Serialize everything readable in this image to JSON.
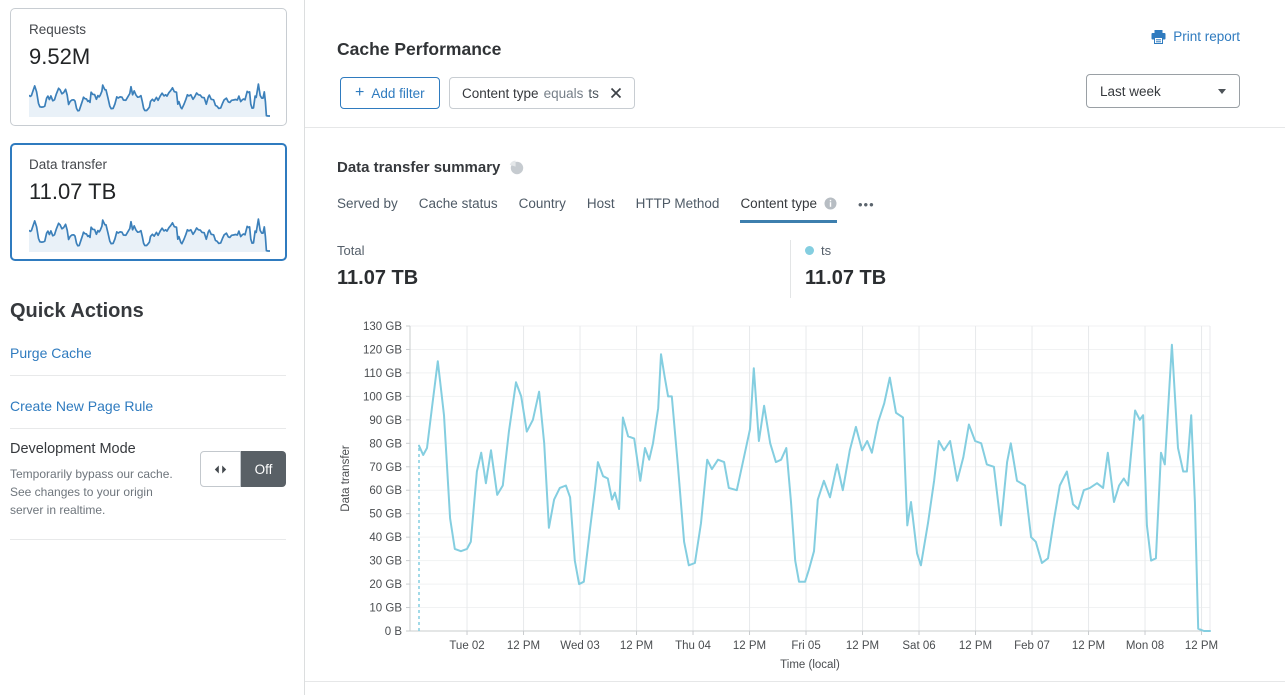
{
  "sidebar": {
    "cards": [
      {
        "label": "Requests",
        "value": "9.52M",
        "selected": false
      },
      {
        "label": "Data transfer",
        "value": "11.07 TB",
        "selected": true
      }
    ],
    "quick_actions": {
      "title": "Quick Actions",
      "links": [
        {
          "label": "Purge Cache"
        },
        {
          "label": "Create New Page Rule"
        }
      ],
      "dev_mode": {
        "title": "Development Mode",
        "description": "Temporarily bypass our cache. See changes to your origin server in realtime.",
        "toggle_state": "Off"
      }
    }
  },
  "header": {
    "title": "Cache Performance",
    "print_label": "Print report",
    "add_filter": {
      "plus": "+",
      "label": "Add filter"
    },
    "filter_chip": {
      "field": "Content type",
      "operator": "equals",
      "value": "ts"
    },
    "time_range": "Last week"
  },
  "summary": {
    "title": "Data transfer summary",
    "tabs": [
      {
        "label": "Served by",
        "active": false,
        "info": false
      },
      {
        "label": "Cache status",
        "active": false,
        "info": false
      },
      {
        "label": "Country",
        "active": false,
        "info": false
      },
      {
        "label": "Host",
        "active": false,
        "info": false
      },
      {
        "label": "HTTP Method",
        "active": false,
        "info": false
      },
      {
        "label": "Content type",
        "active": true,
        "info": true
      }
    ],
    "more_label": "•••",
    "total_label": "Total",
    "total_value": "11.07 TB",
    "legend": {
      "name": "ts",
      "value": "11.07 TB",
      "color": "#84cee0"
    }
  },
  "chart_data": {
    "type": "line",
    "title": "Data transfer summary",
    "xlabel": "Time (local)",
    "ylabel": "Data transfer",
    "unit": "GB",
    "ylim": [
      0,
      130
    ],
    "y_ticks": [
      {
        "value": 0,
        "label": "0 B"
      },
      {
        "value": 10,
        "label": "10 GB"
      },
      {
        "value": 20,
        "label": "20 GB"
      },
      {
        "value": 30,
        "label": "30 GB"
      },
      {
        "value": 40,
        "label": "40 GB"
      },
      {
        "value": 50,
        "label": "50 GB"
      },
      {
        "value": 60,
        "label": "60 GB"
      },
      {
        "value": 70,
        "label": "70 GB"
      },
      {
        "value": 80,
        "label": "80 GB"
      },
      {
        "value": 90,
        "label": "90 GB"
      },
      {
        "value": 100,
        "label": "100 GB"
      },
      {
        "value": 110,
        "label": "110 GB"
      },
      {
        "value": 120,
        "label": "120 GB"
      },
      {
        "value": 130,
        "label": "130 GB"
      }
    ],
    "x_range_hours": [
      0,
      168
    ],
    "x_ticks": [
      {
        "hour": 10.2,
        "label": "Tue 02"
      },
      {
        "hour": 22.2,
        "label": "12 PM"
      },
      {
        "hour": 34.2,
        "label": "Wed 03"
      },
      {
        "hour": 46.2,
        "label": "12 PM"
      },
      {
        "hour": 58.2,
        "label": "Thu 04"
      },
      {
        "hour": 70.2,
        "label": "12 PM"
      },
      {
        "hour": 82.2,
        "label": "Fri 05"
      },
      {
        "hour": 94.2,
        "label": "12 PM"
      },
      {
        "hour": 106.2,
        "label": "Sat 06"
      },
      {
        "hour": 118.2,
        "label": "12 PM"
      },
      {
        "hour": 130.2,
        "label": "Feb 07"
      },
      {
        "hour": 142.2,
        "label": "12 PM"
      },
      {
        "hour": 154.2,
        "label": "Mon 08"
      },
      {
        "hour": 166.2,
        "label": "12 PM"
      }
    ],
    "grid": true,
    "legend_position": "top-right",
    "leading_dashed_drop": true,
    "series": [
      {
        "name": "ts",
        "color": "#84cee0",
        "points": [
          [
            0,
            79
          ],
          [
            0.9,
            75
          ],
          [
            1.7,
            78
          ],
          [
            2.8,
            96
          ],
          [
            4,
            115
          ],
          [
            5.3,
            92
          ],
          [
            6.6,
            48
          ],
          [
            7.6,
            35
          ],
          [
            8.9,
            34
          ],
          [
            10.2,
            35
          ],
          [
            11,
            38
          ],
          [
            12.3,
            68
          ],
          [
            13.2,
            76
          ],
          [
            14.2,
            63
          ],
          [
            15.3,
            77
          ],
          [
            16.6,
            58
          ],
          [
            17.8,
            62
          ],
          [
            19.1,
            85
          ],
          [
            20.6,
            106
          ],
          [
            21.7,
            100
          ],
          [
            22.9,
            85
          ],
          [
            24.2,
            90
          ],
          [
            25.5,
            102
          ],
          [
            26.6,
            80
          ],
          [
            27.6,
            44
          ],
          [
            28.7,
            56
          ],
          [
            29.9,
            61
          ],
          [
            31.2,
            62
          ],
          [
            32.1,
            57
          ],
          [
            33.1,
            30
          ],
          [
            34,
            20
          ],
          [
            35,
            21
          ],
          [
            36.3,
            43
          ],
          [
            37.4,
            61
          ],
          [
            38,
            72
          ],
          [
            39.1,
            66
          ],
          [
            40.1,
            65
          ],
          [
            41,
            56
          ],
          [
            41.6,
            59
          ],
          [
            42.5,
            52
          ],
          [
            43.3,
            91
          ],
          [
            44.4,
            83
          ],
          [
            45.7,
            82
          ],
          [
            47,
            64
          ],
          [
            48,
            78
          ],
          [
            48.9,
            73
          ],
          [
            49.7,
            80
          ],
          [
            50.8,
            95
          ],
          [
            51.4,
            118
          ],
          [
            52.2,
            108
          ],
          [
            52.9,
            100
          ],
          [
            53.7,
            100
          ],
          [
            55,
            70
          ],
          [
            56.3,
            38
          ],
          [
            57.3,
            28
          ],
          [
            58.6,
            29
          ],
          [
            59.9,
            46
          ],
          [
            61.2,
            73
          ],
          [
            62.2,
            69
          ],
          [
            63.5,
            73
          ],
          [
            64.8,
            72
          ],
          [
            65.8,
            61
          ],
          [
            67.5,
            60
          ],
          [
            69,
            74
          ],
          [
            70.3,
            86
          ],
          [
            71.1,
            112
          ],
          [
            72.2,
            81
          ],
          [
            73.3,
            96
          ],
          [
            74.6,
            80
          ],
          [
            75.8,
            72
          ],
          [
            76.9,
            73
          ],
          [
            78,
            78
          ],
          [
            79,
            55
          ],
          [
            79.9,
            30
          ],
          [
            80.7,
            21
          ],
          [
            82,
            21
          ],
          [
            82.8,
            26
          ],
          [
            83.9,
            34
          ],
          [
            84.7,
            56
          ],
          [
            86,
            64
          ],
          [
            87.3,
            57
          ],
          [
            88.8,
            71
          ],
          [
            90,
            60
          ],
          [
            91.5,
            77
          ],
          [
            92.8,
            87
          ],
          [
            94.1,
            77
          ],
          [
            95.2,
            81
          ],
          [
            96.2,
            76
          ],
          [
            97.5,
            89
          ],
          [
            98.8,
            97
          ],
          [
            100,
            108
          ],
          [
            101.3,
            93
          ],
          [
            102.8,
            91
          ],
          [
            103.7,
            45
          ],
          [
            104.5,
            55
          ],
          [
            105.8,
            33
          ],
          [
            106.6,
            28
          ],
          [
            108.1,
            46
          ],
          [
            109.4,
            64
          ],
          [
            110.4,
            81
          ],
          [
            111.5,
            77
          ],
          [
            112.8,
            81
          ],
          [
            114.3,
            64
          ],
          [
            115.6,
            74
          ],
          [
            116.8,
            88
          ],
          [
            118.1,
            81
          ],
          [
            119.4,
            80
          ],
          [
            120.6,
            71
          ],
          [
            122.1,
            70
          ],
          [
            123.6,
            45
          ],
          [
            124.9,
            72
          ],
          [
            125.7,
            80
          ],
          [
            127,
            64
          ],
          [
            128.7,
            62
          ],
          [
            130,
            40
          ],
          [
            131,
            38
          ],
          [
            132.3,
            29
          ],
          [
            133.6,
            31
          ],
          [
            134.9,
            48
          ],
          [
            136.1,
            62
          ],
          [
            137.6,
            68
          ],
          [
            138.9,
            54
          ],
          [
            140,
            52
          ],
          [
            141.2,
            60
          ],
          [
            142.5,
            61
          ],
          [
            144,
            63
          ],
          [
            145.3,
            61
          ],
          [
            146.3,
            76
          ],
          [
            147.6,
            55
          ],
          [
            148.7,
            62
          ],
          [
            149.7,
            65
          ],
          [
            150.6,
            62
          ],
          [
            152.1,
            94
          ],
          [
            153.1,
            90
          ],
          [
            153.8,
            92
          ],
          [
            154.6,
            45
          ],
          [
            155.5,
            30
          ],
          [
            156.5,
            31
          ],
          [
            157.6,
            76
          ],
          [
            158.4,
            71
          ],
          [
            159.9,
            122
          ],
          [
            161.2,
            78
          ],
          [
            162.3,
            68
          ],
          [
            163.1,
            68
          ],
          [
            164,
            92
          ],
          [
            164.8,
            55
          ],
          [
            165.5,
            1
          ],
          [
            166.7,
            0
          ],
          [
            168,
            0
          ]
        ]
      }
    ]
  },
  "colors": {
    "accent_blue": "#2f7bbf",
    "chart_line": "#84cee0",
    "spark_line": "#3c80ba",
    "spark_fill": "#e9f1f8",
    "toggle_off_bg": "#596066",
    "tab_underline": "#3d7fae"
  }
}
